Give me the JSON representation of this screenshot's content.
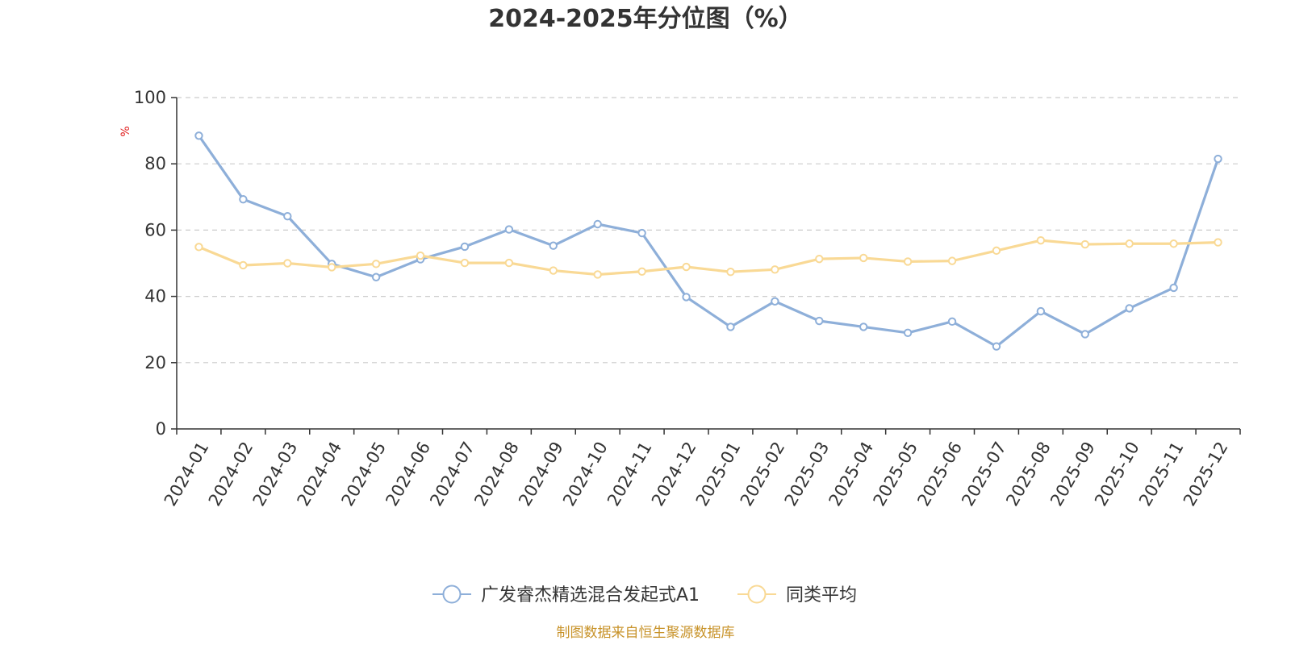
{
  "chart_data": {
    "type": "line",
    "title": "2024-2025年分位图（%）",
    "ylabel": "%",
    "ylim": [
      0,
      100
    ],
    "yticks": [
      0,
      20,
      40,
      60,
      80,
      100
    ],
    "grid": true,
    "legend_position": "bottom",
    "categories": [
      "2024-01",
      "2024-02",
      "2024-03",
      "2024-04",
      "2024-05",
      "2024-06",
      "2024-07",
      "2024-08",
      "2024-09",
      "2024-10",
      "2024-11",
      "2024-12",
      "2025-01",
      "2025-02",
      "2025-03",
      "2025-04",
      "2025-05",
      "2025-06",
      "2025-07",
      "2025-08",
      "2025-09",
      "2025-10",
      "2025-11",
      "2025-12"
    ],
    "series": [
      {
        "name": "广发睿杰精选混合发起式A1",
        "color": "#8eafd9",
        "values": [
          88.5,
          69.3,
          64.2,
          49.8,
          45.8,
          51.2,
          55.0,
          60.2,
          55.3,
          61.8,
          59.1,
          39.8,
          30.8,
          38.5,
          32.6,
          30.8,
          29.0,
          32.4,
          24.9,
          35.5,
          28.6,
          36.4,
          42.6,
          81.5
        ]
      },
      {
        "name": "同类平均",
        "color": "#f9d995",
        "values": [
          54.9,
          49.4,
          50.0,
          48.8,
          49.8,
          52.3,
          50.1,
          50.1,
          47.8,
          46.6,
          47.5,
          48.9,
          47.4,
          48.1,
          51.3,
          51.6,
          50.5,
          50.7,
          53.8,
          56.9,
          55.7,
          55.9,
          55.9,
          56.3
        ]
      }
    ]
  },
  "footer": {
    "source": "制图数据来自恒生聚源数据库"
  }
}
